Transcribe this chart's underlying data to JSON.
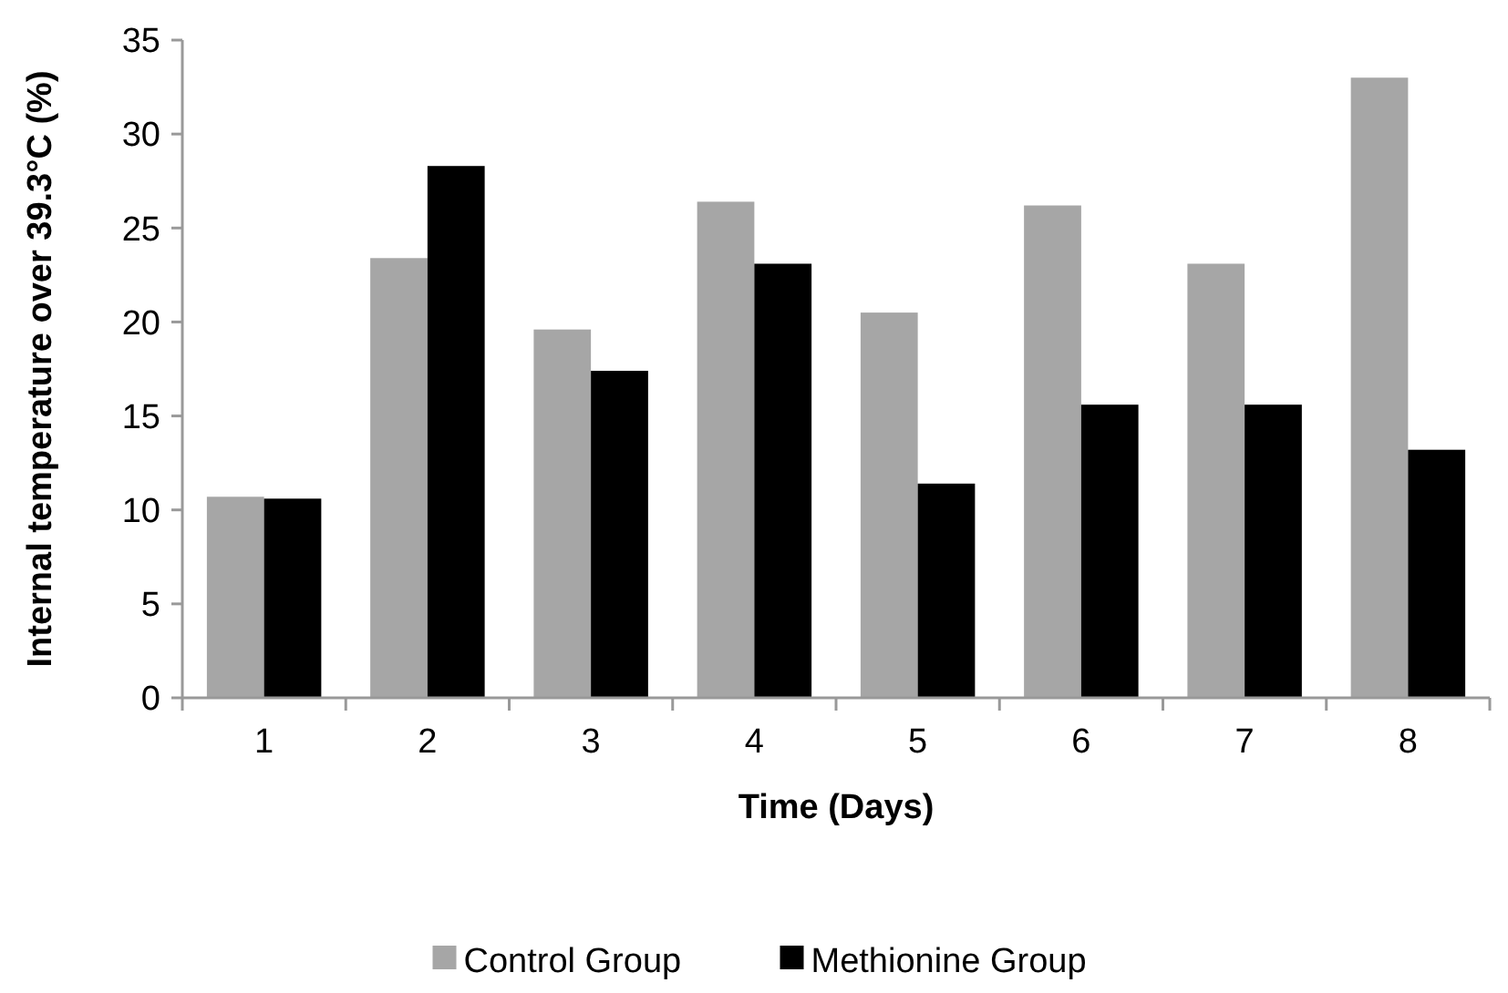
{
  "chart_data": {
    "type": "bar",
    "xlabel": "Time (Days)",
    "ylabel": "Internal temperature over 39.3°C (%)",
    "categories": [
      "1",
      "2",
      "3",
      "4",
      "5",
      "6",
      "7",
      "8"
    ],
    "series": [
      {
        "name": "Control Group",
        "color": "#a6a6a6",
        "values": [
          10.7,
          23.4,
          19.6,
          26.4,
          20.5,
          26.2,
          23.1,
          33.0
        ]
      },
      {
        "name": "Methionine Group",
        "color": "#000000",
        "values": [
          10.6,
          28.3,
          17.4,
          23.1,
          11.4,
          15.6,
          15.6,
          13.2
        ]
      }
    ],
    "ylim": [
      0,
      35
    ],
    "yticks": [
      0,
      5,
      10,
      15,
      20,
      25,
      30,
      35
    ],
    "grid": false,
    "legend": "bottom"
  }
}
